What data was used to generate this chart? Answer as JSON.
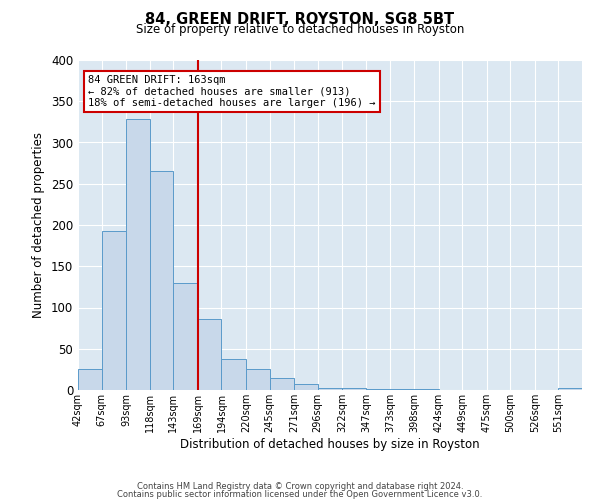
{
  "title": "84, GREEN DRIFT, ROYSTON, SG8 5BT",
  "subtitle": "Size of property relative to detached houses in Royston",
  "xlabel": "Distribution of detached houses by size in Royston",
  "ylabel": "Number of detached properties",
  "bar_labels": [
    "42sqm",
    "67sqm",
    "93sqm",
    "118sqm",
    "143sqm",
    "169sqm",
    "194sqm",
    "220sqm",
    "245sqm",
    "271sqm",
    "296sqm",
    "322sqm",
    "347sqm",
    "373sqm",
    "398sqm",
    "424sqm",
    "449sqm",
    "475sqm",
    "500sqm",
    "526sqm",
    "551sqm"
  ],
  "bar_values": [
    25,
    193,
    328,
    265,
    130,
    86,
    38,
    25,
    15,
    7,
    3,
    3,
    1,
    1,
    1,
    0,
    0,
    0,
    0,
    0,
    2
  ],
  "bin_edges": [
    42,
    67,
    93,
    118,
    143,
    169,
    194,
    220,
    245,
    271,
    296,
    322,
    347,
    373,
    398,
    424,
    449,
    475,
    500,
    526,
    551,
    576
  ],
  "bar_color": "#c8d8ea",
  "bar_edgecolor": "#5a9aca",
  "vline_x": 169,
  "vline_color": "#cc0000",
  "annotation_line1": "84 GREEN DRIFT: 163sqm",
  "annotation_line2": "← 82% of detached houses are smaller (913)",
  "annotation_line3": "18% of semi-detached houses are larger (196) →",
  "annotation_box_edgecolor": "#cc0000",
  "ylim": [
    0,
    400
  ],
  "yticks": [
    0,
    50,
    100,
    150,
    200,
    250,
    300,
    350,
    400
  ],
  "ax_bg_color": "#dce8f2",
  "grid_color": "#ffffff",
  "footer_line1": "Contains HM Land Registry data © Crown copyright and database right 2024.",
  "footer_line2": "Contains public sector information licensed under the Open Government Licence v3.0."
}
